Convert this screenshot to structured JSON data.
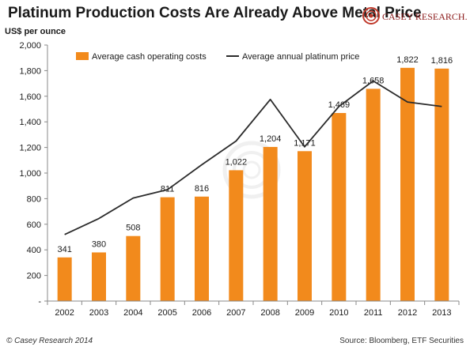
{
  "header": {
    "title": "Platinum Production Costs Are Already Above Metal Price",
    "logo_text": "CASEY RESEARCH.COM"
  },
  "footer": {
    "left": "© Casey Research 2014",
    "right": "Source: Bloomberg, ETF Securities"
  },
  "colors": {
    "bar": "#F28A1C",
    "line": "#2b2b2b",
    "grid": "#d9d9d9",
    "text": "#1a1a1a"
  },
  "chart_data": {
    "type": "bar",
    "title": "Platinum Production Costs Are Already Above Metal Price",
    "ylabel": "US$ per ounce",
    "xlabel": "",
    "ylim": [
      0,
      2000
    ],
    "yticks": [
      0,
      200,
      400,
      600,
      800,
      1000,
      1200,
      1400,
      1600,
      1800,
      2000
    ],
    "ytick_labels": [
      "-",
      "200",
      "400",
      "600",
      "800",
      "1,000",
      "1,200",
      "1,400",
      "1,600",
      "1,800",
      "2,000"
    ],
    "categories": [
      "2002",
      "2003",
      "2004",
      "2005",
      "2006",
      "2007",
      "2008",
      "2009",
      "2010",
      "2011",
      "2012",
      "2013"
    ],
    "series": [
      {
        "name": "Average cash operating costs",
        "type": "bar",
        "values": [
          341,
          380,
          508,
          811,
          816,
          1022,
          1204,
          1171,
          1469,
          1658,
          1822,
          1816
        ],
        "data_labels": [
          "341",
          "380",
          "508",
          "811",
          "816",
          "1,022",
          "1,204",
          "1,171",
          "1,469",
          "1,658",
          "1,822",
          "1,816"
        ]
      },
      {
        "name": "Average annual platinum price",
        "type": "line",
        "values": [
          520,
          645,
          805,
          870,
          1065,
          1250,
          1575,
          1205,
          1520,
          1720,
          1555,
          1520
        ]
      }
    ],
    "legend_position": "top-left",
    "grid": false
  }
}
